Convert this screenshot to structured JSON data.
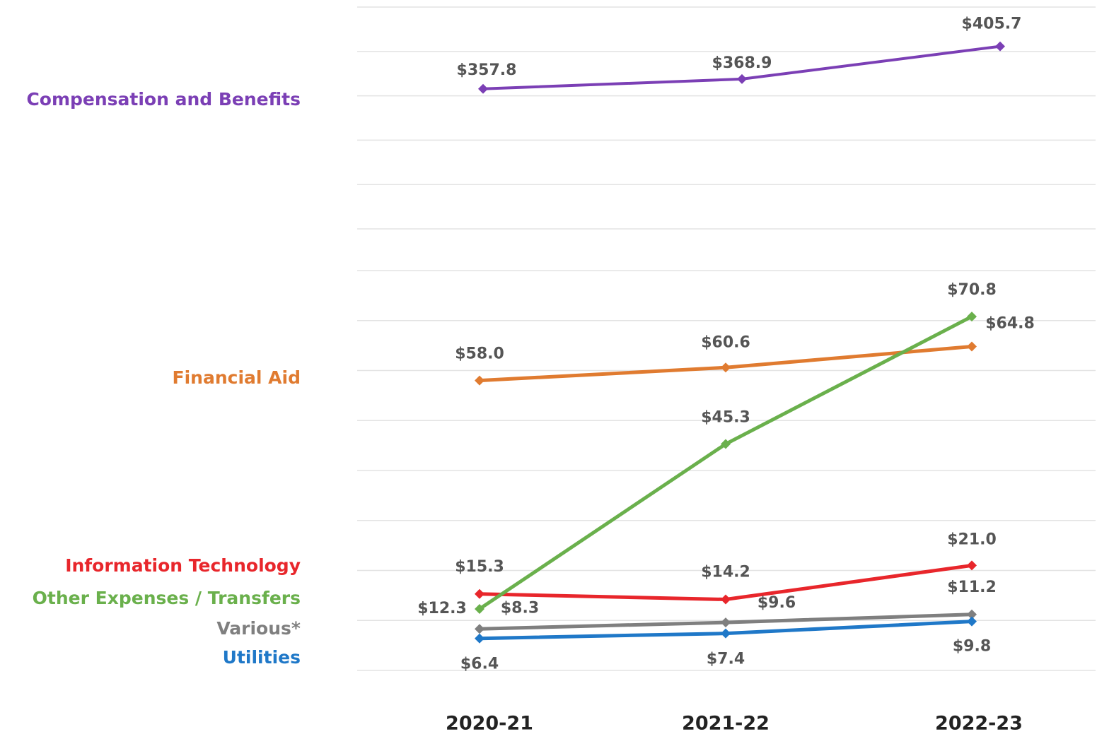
{
  "chart_data": {
    "type": "line",
    "categories": [
      "2020-21",
      "2021-22",
      "2022-23"
    ],
    "ylim": [
      0,
      80
    ],
    "yticks": [
      0,
      10,
      20,
      30,
      40,
      50,
      60,
      70,
      80
    ],
    "y2lim": [
      200,
      450
    ],
    "y2ticks": [
      200,
      250,
      300,
      350,
      400,
      450
    ],
    "grid": true,
    "series": [
      {
        "name": "Compensation and Benefits",
        "color": "#7b3fb5",
        "axis": "y2",
        "values": [
          357.8,
          368.9,
          405.7
        ],
        "value_labels": [
          "$357.8",
          "$368.9",
          "$405.7"
        ]
      },
      {
        "name": "Financial Aid",
        "color": "#e07b30",
        "values": [
          58.0,
          60.6,
          64.8
        ],
        "value_labels": [
          "$58.0",
          "$60.6",
          "$64.8"
        ]
      },
      {
        "name": "Information Technology",
        "color": "#e8262b",
        "values": [
          15.3,
          14.2,
          21.0
        ],
        "value_labels": [
          "$15.3",
          "$14.2",
          "$21.0"
        ]
      },
      {
        "name": "Other Expenses / Transfers",
        "color": "#6ab04c",
        "values": [
          12.3,
          45.3,
          70.8
        ],
        "value_labels": [
          "$12.3",
          "$45.3",
          "$70.8"
        ]
      },
      {
        "name": "Various*",
        "color": "#7f7f7f",
        "values": [
          8.3,
          9.6,
          11.2
        ],
        "value_labels": [
          "$8.3",
          "$9.6",
          "$11.2"
        ]
      },
      {
        "name": "Utilities",
        "color": "#1f78c8",
        "values": [
          6.4,
          7.4,
          9.8
        ],
        "value_labels": [
          "$6.4",
          "$7.4",
          "$9.8"
        ]
      }
    ]
  }
}
